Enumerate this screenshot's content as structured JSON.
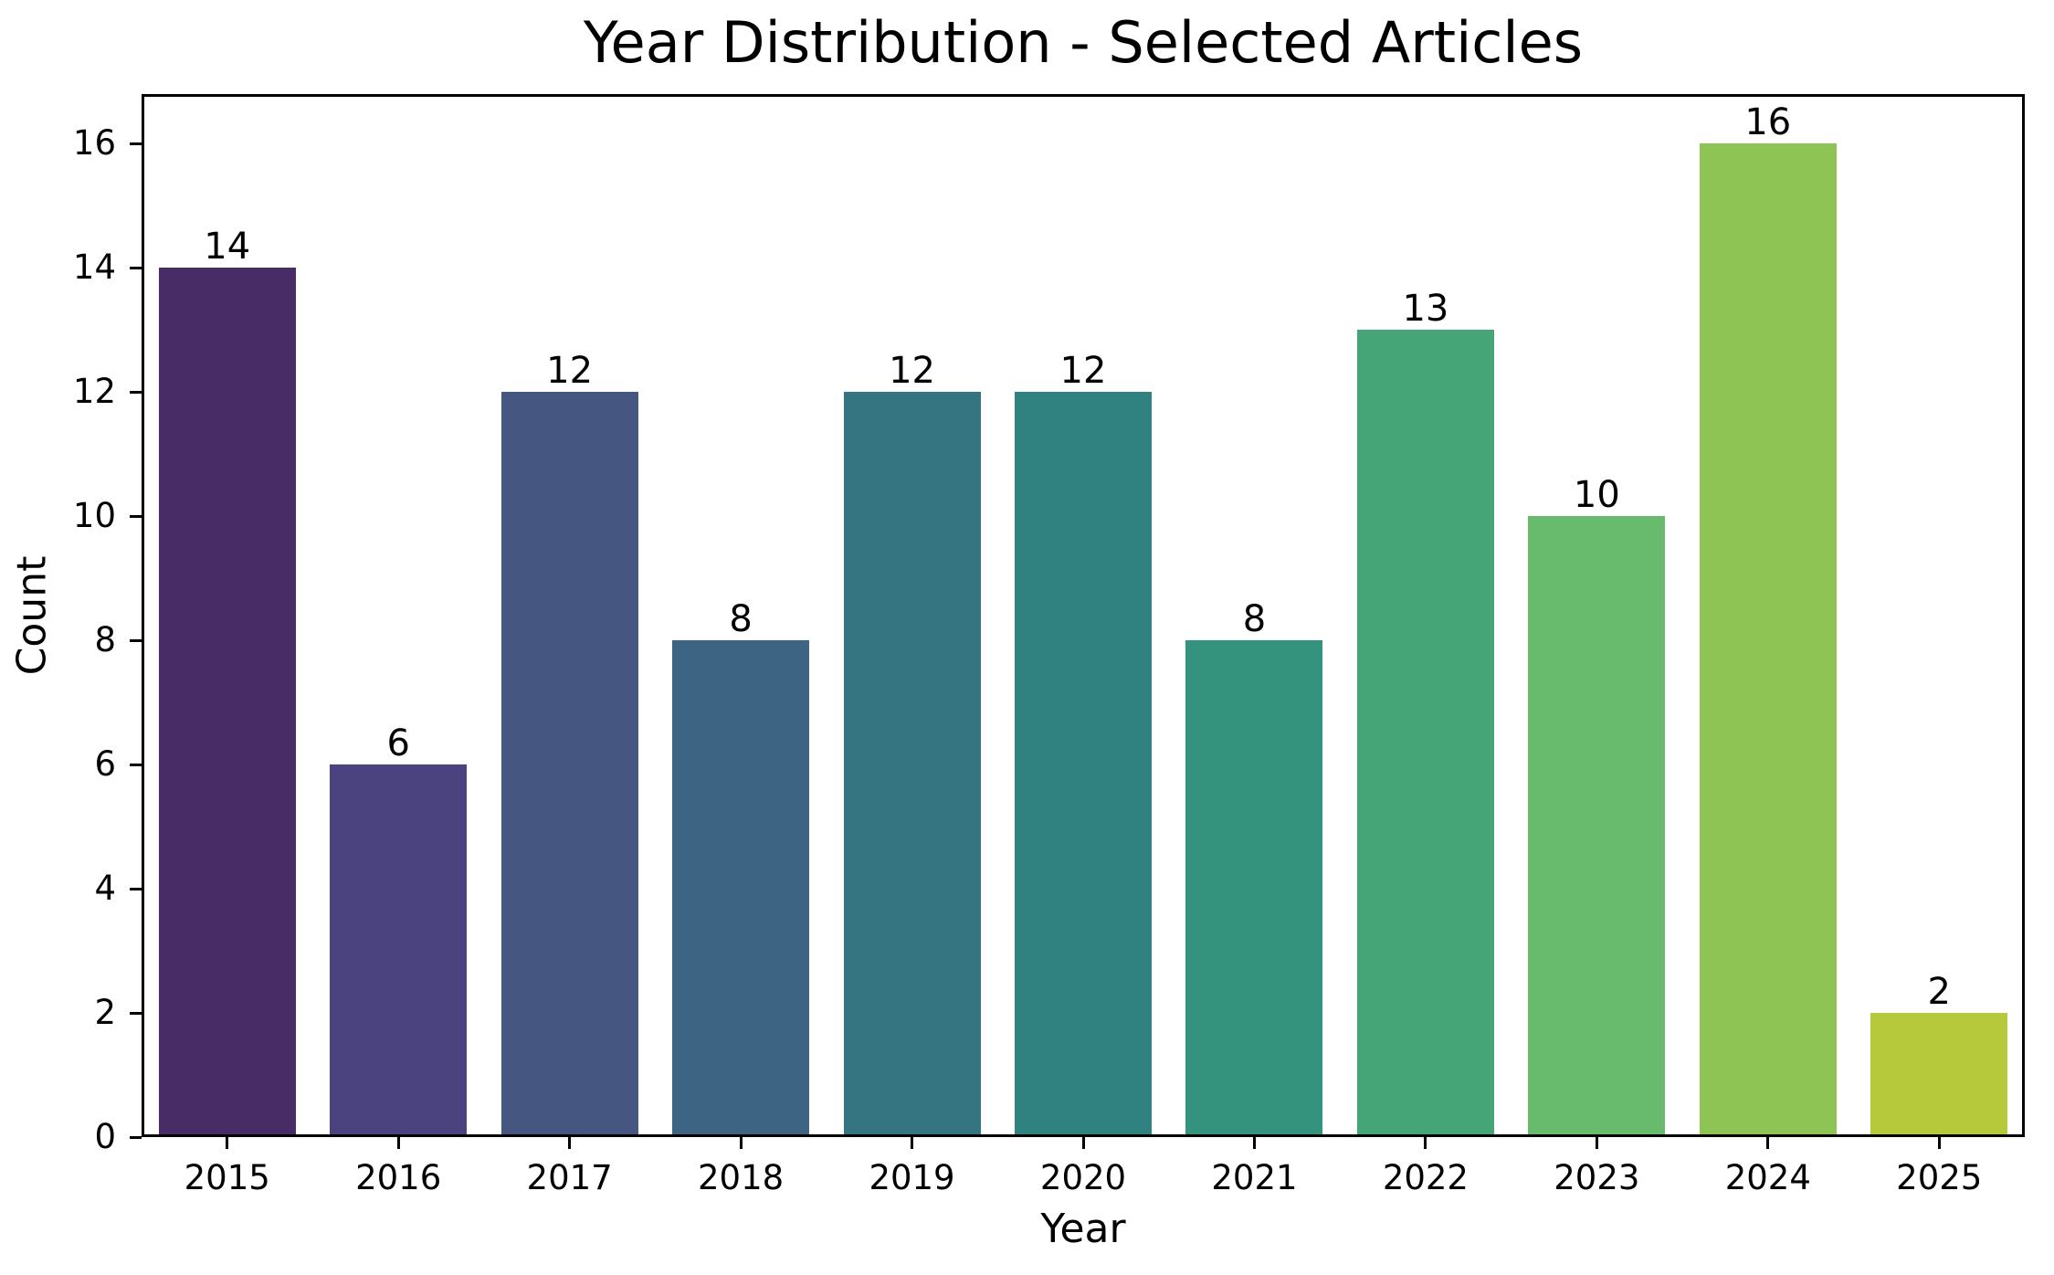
{
  "chart_data": {
    "type": "bar",
    "title": "Year Distribution - Selected Articles",
    "xlabel": "Year",
    "ylabel": "Count",
    "categories": [
      "2015",
      "2016",
      "2017",
      "2018",
      "2019",
      "2020",
      "2021",
      "2022",
      "2023",
      "2024",
      "2025"
    ],
    "values": [
      14,
      6,
      12,
      8,
      12,
      12,
      8,
      13,
      10,
      16,
      2
    ],
    "bar_value_labels": [
      "14",
      "6",
      "12",
      "8",
      "12",
      "12",
      "8",
      "13",
      "10",
      "16",
      "2"
    ],
    "bar_colors": [
      "#472c66",
      "#4a4380",
      "#455681",
      "#3d6482",
      "#357481",
      "#2f827f",
      "#33937d",
      "#45a577",
      "#68bb6c",
      "#8ec454",
      "#b6c93a"
    ],
    "ylim": [
      0,
      16.8
    ],
    "yticks": [
      0,
      2,
      4,
      6,
      8,
      10,
      12,
      14,
      16
    ],
    "grid": false,
    "bar_width_fraction": 0.8,
    "legend_position": "none"
  },
  "colors": {
    "background": "#ffffff",
    "text": "#000000",
    "spine": "#000000"
  }
}
